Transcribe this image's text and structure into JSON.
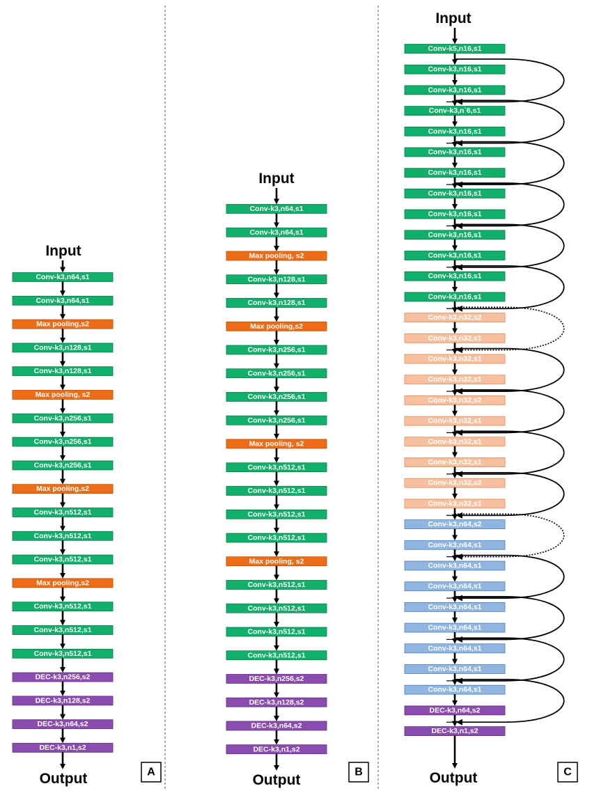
{
  "colors": {
    "conv": "#10b06a",
    "conv_border": "#0a7a48",
    "pool": "#ef6c16",
    "pool_border": "#b24d08",
    "dec": "#8b4cb0",
    "dec_border": "#5e2d80",
    "res32": "#f9c0a0",
    "res32_border": "#e08a5c",
    "res64": "#8fb5e0",
    "res64_border": "#4f7fb8",
    "text_light": "#ffffff"
  },
  "panels": [
    {
      "id": "A",
      "label": "A",
      "input_label": "Input",
      "output_label": "Output",
      "blocks": [
        {
          "text": "Conv-k3,n64,s1",
          "kind": "conv"
        },
        {
          "text": "Conv-k3,n64,s1",
          "kind": "conv"
        },
        {
          "text": "Max pooling,s2",
          "kind": "pool"
        },
        {
          "text": "Conv-k3,n128,s1",
          "kind": "conv"
        },
        {
          "text": "Conv-k3,n128,s1",
          "kind": "conv"
        },
        {
          "text": "Max pooling, s2",
          "kind": "pool"
        },
        {
          "text": "Conv-k3,n256,s1",
          "kind": "conv"
        },
        {
          "text": "Conv-k3,n256,s1",
          "kind": "conv"
        },
        {
          "text": "Conv-k3,n256,s1",
          "kind": "conv"
        },
        {
          "text": "Max pooling,s2",
          "kind": "pool"
        },
        {
          "text": "Conv-k3,n512,s1",
          "kind": "conv"
        },
        {
          "text": "Conv-k3,n512,s1",
          "kind": "conv"
        },
        {
          "text": "Conv-k3,n512,s1",
          "kind": "conv"
        },
        {
          "text": "Max pooling,s2",
          "kind": "pool"
        },
        {
          "text": "Conv-k3,n512,s1",
          "kind": "conv"
        },
        {
          "text": "Conv-k3,n512,s1",
          "kind": "conv"
        },
        {
          "text": "Conv-k3,n512,s1",
          "kind": "conv"
        },
        {
          "text": "DEC-k3,n256,s2",
          "kind": "dec"
        },
        {
          "text": "DEC-k3,n128,s2",
          "kind": "dec"
        },
        {
          "text": "DEC-k3,n64,s2",
          "kind": "dec"
        },
        {
          "text": "DEC-k3,n1,s2",
          "kind": "dec"
        }
      ]
    },
    {
      "id": "B",
      "label": "B",
      "input_label": "Input",
      "output_label": "Output",
      "blocks": [
        {
          "text": "Conv-k3,n64,s1",
          "kind": "conv"
        },
        {
          "text": "Conv-k3,n64,s1",
          "kind": "conv"
        },
        {
          "text": "Max pooling, s2",
          "kind": "pool"
        },
        {
          "text": "Conv-k3,n128,s1",
          "kind": "conv"
        },
        {
          "text": "Conv-k3,n128,s1",
          "kind": "conv"
        },
        {
          "text": "Max pooling,s2",
          "kind": "pool"
        },
        {
          "text": "Conv-k3,n256,s1",
          "kind": "conv"
        },
        {
          "text": "Conv-k3,n256,s1",
          "kind": "conv"
        },
        {
          "text": "Conv-k3,n256,s1",
          "kind": "conv"
        },
        {
          "text": "Conv-k3,n256,s1",
          "kind": "conv"
        },
        {
          "text": "Max pooling, s2",
          "kind": "pool"
        },
        {
          "text": "Conv-k3,n512,s1",
          "kind": "conv"
        },
        {
          "text": "Conv-k3,n512,s1",
          "kind": "conv"
        },
        {
          "text": "Conv-k3,n512,s1",
          "kind": "conv"
        },
        {
          "text": "Conv-k3,n512,s1",
          "kind": "conv"
        },
        {
          "text": "Max pooling, s2",
          "kind": "pool"
        },
        {
          "text": "Conv-k3,n512,s1",
          "kind": "conv"
        },
        {
          "text": "Conv-k3,n512,s1",
          "kind": "conv"
        },
        {
          "text": "Conv-k3,n512,s1",
          "kind": "conv"
        },
        {
          "text": "Conv-k3,n512,s1",
          "kind": "conv"
        },
        {
          "text": "DEC-k3,n256,s2",
          "kind": "dec"
        },
        {
          "text": "DEC-k3,n128,s2",
          "kind": "dec"
        },
        {
          "text": "DEC-k3,n64,s2",
          "kind": "dec"
        },
        {
          "text": "DEC-k3,n1,s2",
          "kind": "dec"
        }
      ]
    },
    {
      "id": "C",
      "label": "C",
      "input_label": "Input",
      "output_label": "Output",
      "blocks": [
        {
          "text": "Conv-k5,n16,s1",
          "kind": "conv"
        },
        {
          "text": "Conv-k3,n16,s1",
          "kind": "conv"
        },
        {
          "text": "Conv-k3,n16,s1",
          "kind": "conv"
        },
        {
          "text": "Conv-k3,n`6,s1",
          "kind": "conv"
        },
        {
          "text": "Conv-k3,n16,s1",
          "kind": "conv"
        },
        {
          "text": "Conv-k3,n16,s1",
          "kind": "conv"
        },
        {
          "text": "Conv-k3,n16,s1",
          "kind": "conv"
        },
        {
          "text": "Conv-k3,n16,s1",
          "kind": "conv"
        },
        {
          "text": "Conv-k3,n16,s1",
          "kind": "conv"
        },
        {
          "text": "Conv-k3,n16,s1",
          "kind": "conv"
        },
        {
          "text": "Conv-k3,n16,s1",
          "kind": "conv"
        },
        {
          "text": "Conv-k3,n16,s1",
          "kind": "conv"
        },
        {
          "text": "Conv-k3,n16,s1",
          "kind": "conv"
        },
        {
          "text": "Conv-k3,n32,s2",
          "kind": "res32"
        },
        {
          "text": "Conv-k3,n32,s1",
          "kind": "res32"
        },
        {
          "text": "Conv-k3,n32,s1",
          "kind": "res32"
        },
        {
          "text": "Conv-k3,n32,s1",
          "kind": "res32"
        },
        {
          "text": "Conv-k3,n32,s2",
          "kind": "res32"
        },
        {
          "text": "Conv-k3,n32,s1",
          "kind": "res32"
        },
        {
          "text": "Conv-k3,n32,s1",
          "kind": "res32"
        },
        {
          "text": "Conv-k3,n32,s1",
          "kind": "res32"
        },
        {
          "text": "Conv-k3,n32,s2",
          "kind": "res32"
        },
        {
          "text": "Conv-k3,n32,s1",
          "kind": "res32"
        },
        {
          "text": "Conv-k3,n64,s2",
          "kind": "res64"
        },
        {
          "text": "Conv-k3,n64,s1",
          "kind": "res64"
        },
        {
          "text": "Conv-k3,n64,s1",
          "kind": "res64"
        },
        {
          "text": "Conv-k3,n64,s1",
          "kind": "res64"
        },
        {
          "text": "Conv-k3,n64,s1",
          "kind": "res64"
        },
        {
          "text": "Conv-k3,n64,s1",
          "kind": "res64"
        },
        {
          "text": "Conv-k3,n64,s1",
          "kind": "res64"
        },
        {
          "text": "Conv-k3,n64,s1",
          "kind": "res64"
        },
        {
          "text": "Conv-k3,n64,s1",
          "kind": "res64"
        },
        {
          "text": "DEC-k3,n64,s2",
          "kind": "dec"
        },
        {
          "text": "DEC-k3,n1,s2",
          "kind": "dec"
        }
      ],
      "skip_connections": [
        {
          "from": 1,
          "to": 3,
          "dotted": false
        },
        {
          "from": 3,
          "to": 5,
          "dotted": false
        },
        {
          "from": 5,
          "to": 7,
          "dotted": false
        },
        {
          "from": 7,
          "to": 9,
          "dotted": false
        },
        {
          "from": 9,
          "to": 11,
          "dotted": false
        },
        {
          "from": 11,
          "to": 13,
          "dotted": false
        },
        {
          "from": 13,
          "to": 15,
          "dotted": true
        },
        {
          "from": 15,
          "to": 17,
          "dotted": false
        },
        {
          "from": 17,
          "to": 19,
          "dotted": false
        },
        {
          "from": 19,
          "to": 21,
          "dotted": false
        },
        {
          "from": 21,
          "to": 23,
          "dotted": false
        },
        {
          "from": 23,
          "to": 25,
          "dotted": true
        },
        {
          "from": 25,
          "to": 27,
          "dotted": false
        },
        {
          "from": 27,
          "to": 29,
          "dotted": false
        },
        {
          "from": 29,
          "to": 31,
          "dotted": false
        },
        {
          "from": 31,
          "to": 33,
          "dotted": false
        }
      ]
    }
  ]
}
